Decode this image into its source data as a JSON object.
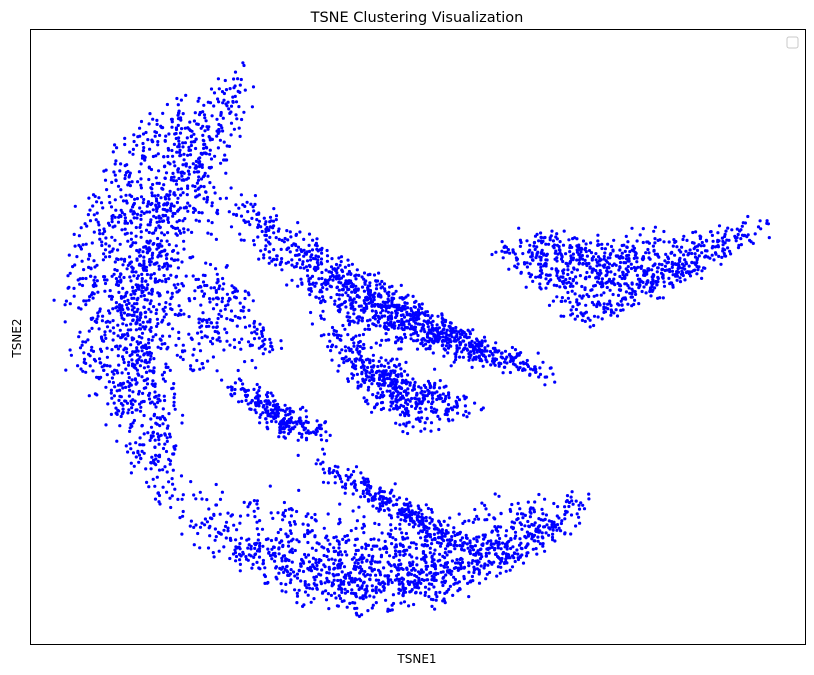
{
  "chart_data": {
    "type": "scatter",
    "title": "TSNE Clustering Visualization",
    "xlabel": "TSNE1",
    "ylabel": "TSNE2",
    "ticks_visible": false,
    "grid": false,
    "legend": {
      "placement": "top-right",
      "entries": []
    },
    "xlim": [
      0,
      100
    ],
    "ylim": [
      0,
      100
    ],
    "colors": {
      "points": "#0000ff",
      "frame": "#000000",
      "background": "#ffffff"
    },
    "series": [
      {
        "color": "#0000ff",
        "density_regions": [
          {
            "path": [
              [
                27.5,
                94
              ],
              [
                25,
                91.5
              ],
              [
                20,
                89
              ],
              [
                14,
                85
              ],
              [
                11,
                80
              ],
              [
                8.5,
                74
              ],
              [
                7,
                69
              ],
              [
                5,
                62
              ],
              [
                4.5,
                55
              ],
              [
                5.5,
                48
              ],
              [
                7.5,
                42
              ],
              [
                10,
                36
              ],
              [
                13,
                30
              ],
              [
                15.5,
                26
              ],
              [
                17,
                22.5
              ],
              [
                18.5,
                24
              ],
              [
                17.5,
                30.5
              ],
              [
                16,
                37
              ],
              [
                14.2,
                44
              ],
              [
                13.5,
                51
              ],
              [
                14.5,
                58
              ],
              [
                15.5,
                65
              ],
              [
                17,
                71
              ],
              [
                19.5,
                77
              ],
              [
                22.5,
                83
              ],
              [
                25.5,
                88
              ],
              [
                28.5,
                91.5
              ]
            ],
            "weight": 25
          },
          {
            "path": [
              [
                15,
                25
              ],
              [
                20,
                18
              ],
              [
                25,
                14
              ],
              [
                30,
                10.5
              ],
              [
                35,
                7
              ],
              [
                40,
                5.5
              ],
              [
                45,
                5
              ],
              [
                50,
                6
              ],
              [
                55,
                8
              ],
              [
                60,
                11
              ],
              [
                64,
                14
              ],
              [
                67,
                16.5
              ],
              [
                69.5,
                19.5
              ],
              [
                71.5,
                22.5
              ],
              [
                72.5,
                24.5
              ],
              [
                71,
                24
              ],
              [
                67,
                20
              ],
              [
                64,
                15.5
              ],
              [
                60,
                12.5
              ],
              [
                55,
                11
              ],
              [
                50,
                10
              ],
              [
                45,
                9.5
              ],
              [
                40,
                10
              ],
              [
                35,
                11
              ],
              [
                30,
                13
              ],
              [
                26,
                16
              ],
              [
                22,
                21
              ],
              [
                18.5,
                25
              ]
            ],
            "weight": 22
          },
          {
            "path": [
              [
                24.5,
                74
              ],
              [
                27,
                72
              ],
              [
                30,
                69
              ],
              [
                34,
                66
              ],
              [
                37,
                63
              ],
              [
                40,
                60
              ],
              [
                43,
                58
              ],
              [
                46,
                56
              ],
              [
                49,
                54
              ],
              [
                52,
                52
              ],
              [
                55,
                50
              ],
              [
                58,
                48
              ],
              [
                61,
                47
              ],
              [
                64,
                46
              ],
              [
                67,
                44
              ],
              [
                69,
                42
              ],
              [
                66.5,
                44
              ],
              [
                63,
                45
              ],
              [
                60,
                45.5
              ],
              [
                57,
                46
              ],
              [
                54,
                47
              ],
              [
                51,
                48
              ],
              [
                48,
                49
              ],
              [
                45,
                50
              ],
              [
                42,
                52
              ],
              [
                39,
                54
              ],
              [
                36,
                57
              ],
              [
                33,
                60
              ],
              [
                30,
                63
              ],
              [
                27,
                67
              ],
              [
                25,
                71
              ]
            ],
            "weight": 18
          },
          {
            "path": [
              [
                60,
                65
              ],
              [
                63,
                66
              ],
              [
                66,
                66.5
              ],
              [
                69,
                66
              ],
              [
                72,
                65.5
              ],
              [
                75,
                63
              ],
              [
                79,
                59.5
              ],
              [
                82,
                57
              ],
              [
                85,
                60
              ],
              [
                88,
                63
              ],
              [
                91,
                65.5
              ],
              [
                94,
                68
              ],
              [
                96.5,
                69
              ],
              [
                92,
                66
              ],
              [
                89,
                63.5
              ],
              [
                86,
                61.5
              ],
              [
                83,
                59.5
              ],
              [
                80,
                58
              ],
              [
                77,
                56
              ],
              [
                74,
                53.5
              ],
              [
                71,
                52
              ],
              [
                69,
                51.5
              ],
              [
                70,
                55
              ],
              [
                67,
                59
              ],
              [
                64,
                61
              ],
              [
                61,
                62
              ],
              [
                59.5,
                63
              ]
            ],
            "weight": 14
          },
          {
            "path": [
              [
                36.5,
                55
              ],
              [
                38,
                50
              ],
              [
                39.5,
                46
              ],
              [
                42,
                43
              ],
              [
                44.5,
                40
              ],
              [
                47,
                38
              ],
              [
                48,
                35
              ],
              [
                51.5,
                35
              ],
              [
                54.5,
                36
              ],
              [
                56.5,
                37
              ],
              [
                58,
                38.5
              ],
              [
                56,
                39.5
              ],
              [
                53,
                40
              ],
              [
                50,
                41
              ],
              [
                47,
                42.5
              ],
              [
                44.5,
                45
              ],
              [
                42,
                48
              ],
              [
                40,
                51
              ]
            ],
            "weight": 8
          },
          {
            "path": [
              [
                35,
                31
              ],
              [
                38,
                29
              ],
              [
                40,
                27.5
              ],
              [
                42,
                26
              ],
              [
                44,
                24.5
              ],
              [
                46,
                23
              ],
              [
                48,
                21.5
              ],
              [
                49.5,
                20
              ],
              [
                51,
                19
              ],
              [
                52.5,
                19
              ],
              [
                54,
                17.5
              ],
              [
                55.5,
                16
              ],
              [
                57,
                15
              ],
              [
                58.5,
                15.5
              ]
            ],
            "weight": 5
          },
          {
            "path": [
              [
                25,
                43
              ],
              [
                27,
                42
              ],
              [
                29,
                40
              ],
              [
                30.5,
                38.5
              ],
              [
                31.5,
                36.5
              ],
              [
                33,
                34.5
              ],
              [
                35,
                34
              ],
              [
                37,
                34.5
              ],
              [
                38.5,
                33.5
              ]
            ],
            "weight": 4
          },
          {
            "path": [
              [
                21,
                45
              ],
              [
                22,
                51
              ],
              [
                21.5,
                58
              ],
              [
                24,
                62.5
              ],
              [
                27,
                57.5
              ],
              [
                30,
                50
              ],
              [
                32,
                47
              ]
            ],
            "weight": 3
          }
        ]
      }
    ]
  }
}
